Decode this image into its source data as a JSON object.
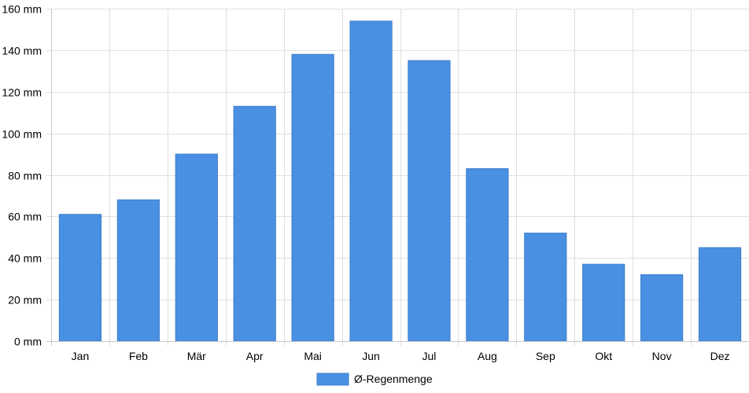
{
  "chart_data": {
    "type": "bar",
    "categories": [
      "Jan",
      "Feb",
      "Mär",
      "Apr",
      "Mai",
      "Jun",
      "Jul",
      "Aug",
      "Sep",
      "Okt",
      "Nov",
      "Dez"
    ],
    "series": [
      {
        "name": "Ø-Regenmenge",
        "values": [
          61,
          68,
          90,
          113,
          138,
          154,
          135,
          83,
          52,
          37,
          32,
          45
        ],
        "color": "#4a90e2"
      }
    ],
    "y_unit": "mm",
    "ylim": [
      0,
      160
    ],
    "y_ticks": [
      0,
      20,
      40,
      60,
      80,
      100,
      120,
      140,
      160
    ],
    "y_tick_labels": [
      "0 mm",
      "20 mm",
      "40 mm",
      "60 mm",
      "80 mm",
      "100 mm",
      "120 mm",
      "140 mm",
      "160 mm"
    ],
    "grid": true,
    "legend_position": "bottom"
  }
}
